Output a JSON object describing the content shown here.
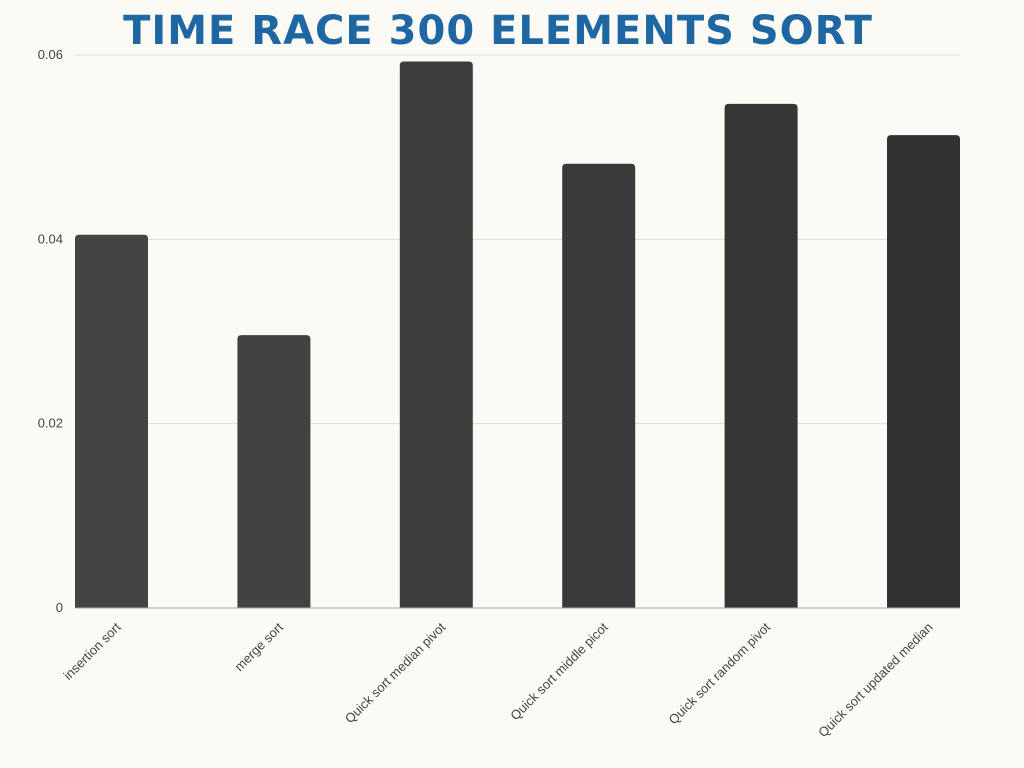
{
  "chart_data": {
    "type": "bar",
    "title": "TIME RACE 300 ELEMENTS SORT",
    "xlabel": "",
    "ylabel": "",
    "categories": [
      "insertion sort",
      "merge sort",
      "Quick sort median pivot",
      "Quick sort middle picot",
      "Quick sort random pivot",
      "Quick sort updated median"
    ],
    "values": [
      0.0405,
      0.0296,
      0.0593,
      0.0482,
      0.0547,
      0.0513
    ],
    "ylim": [
      0,
      0.06
    ],
    "yticks": [
      {
        "value": 0,
        "label": "0"
      },
      {
        "value": 0.02,
        "label": "0.02"
      },
      {
        "value": 0.04,
        "label": "0.04"
      },
      {
        "value": 0.06,
        "label": "0.06"
      }
    ],
    "grid": true,
    "legend": "none",
    "colors": {
      "title": "#1f67a3",
      "bars": [
        "#444444",
        "#424242",
        "#3d3d3d",
        "#3a3a3a",
        "#363636",
        "#323232"
      ],
      "grid": "#dcdcd4",
      "axis": "#aaaaaa",
      "background": "#fcfaf4"
    }
  }
}
